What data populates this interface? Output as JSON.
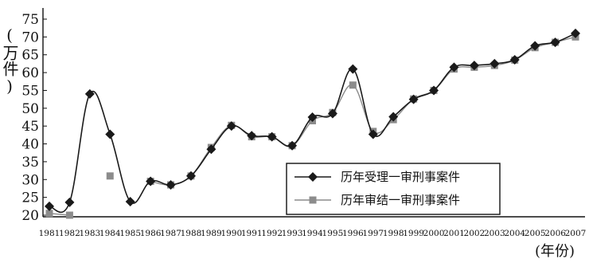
{
  "chart_data": {
    "type": "line",
    "ylabel": "(万件)",
    "xlabel": "(年份)",
    "x": [
      "1981",
      "1982",
      "1983",
      "1984",
      "1985",
      "1986",
      "1987",
      "1988",
      "1989",
      "1990",
      "1991",
      "1992",
      "1993",
      "1994",
      "1995",
      "1996",
      "1997",
      "1998",
      "1999",
      "2000",
      "2001",
      "2002",
      "2003",
      "2004",
      "2005",
      "2006",
      "2007"
    ],
    "ylim": [
      20,
      75
    ],
    "yticks": [
      20,
      25,
      30,
      35,
      40,
      45,
      50,
      55,
      60,
      65,
      70,
      75
    ],
    "legend_position": "lower-right",
    "series": [
      {
        "name": "历年受理一审刑事案件",
        "marker": "diamond",
        "color": "#1a1a1a",
        "values": [
          22.5,
          23.6,
          54.0,
          42.7,
          23.8,
          29.5,
          28.5,
          31.0,
          38.5,
          45.0,
          42.3,
          42.0,
          39.5,
          47.5,
          48.5,
          61.0,
          42.7,
          47.6,
          52.5,
          55.0,
          61.5,
          62.0,
          62.5,
          63.6,
          67.5,
          68.5,
          71.0
        ]
      },
      {
        "name": "历年审结一审刑事案件",
        "marker": "square",
        "color": "#8c8c8c",
        "values": [
          20.5,
          20.0,
          null,
          31.0,
          null,
          29.5,
          28.5,
          31.0,
          39.0,
          45.2,
          42.0,
          42.0,
          39.5,
          46.5,
          48.8,
          56.5,
          43.5,
          46.8,
          52.6,
          55.0,
          61.0,
          61.5,
          62.0,
          63.5,
          67.0,
          68.5,
          70.0
        ]
      }
    ]
  }
}
